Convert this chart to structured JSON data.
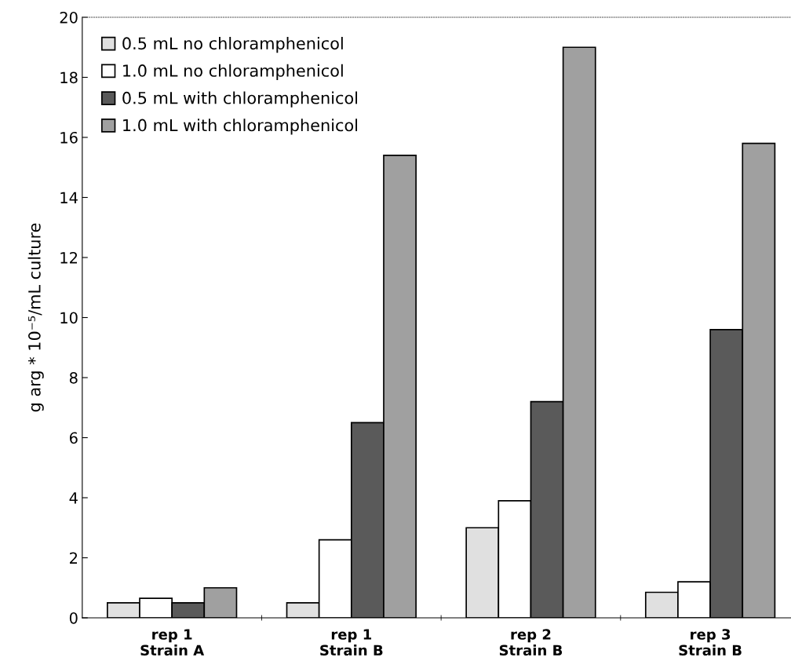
{
  "chart_data": {
    "type": "bar",
    "ylabel": "g arg * 10⁻⁵/mL culture",
    "categories": [
      "rep 1\nStrain A",
      "rep 1\nStrain B",
      "rep 2\nStrain B",
      "rep 3\nStrain B"
    ],
    "series": [
      {
        "name": "0.5 mL no chloramphenicol",
        "color": "#e0e0e0",
        "values": [
          0.5,
          0.5,
          3.0,
          0.85
        ]
      },
      {
        "name": "1.0 mL no chloramphenicol",
        "color": "#ffffff",
        "values": [
          0.65,
          2.6,
          3.9,
          1.2
        ]
      },
      {
        "name": "0.5 mL with chloramphenicol",
        "color": "#5a5a5a",
        "values": [
          0.5,
          6.5,
          7.2,
          9.6
        ]
      },
      {
        "name": "1.0 mL with chloramphenicol",
        "color": "#a0a0a0",
        "values": [
          1.0,
          15.4,
          19.0,
          15.8
        ]
      }
    ],
    "ylim": [
      0,
      20
    ],
    "yticks": [
      0,
      2,
      4,
      6,
      8,
      10,
      12,
      14,
      16,
      18,
      20
    ],
    "grid": false,
    "legend": "top left"
  }
}
